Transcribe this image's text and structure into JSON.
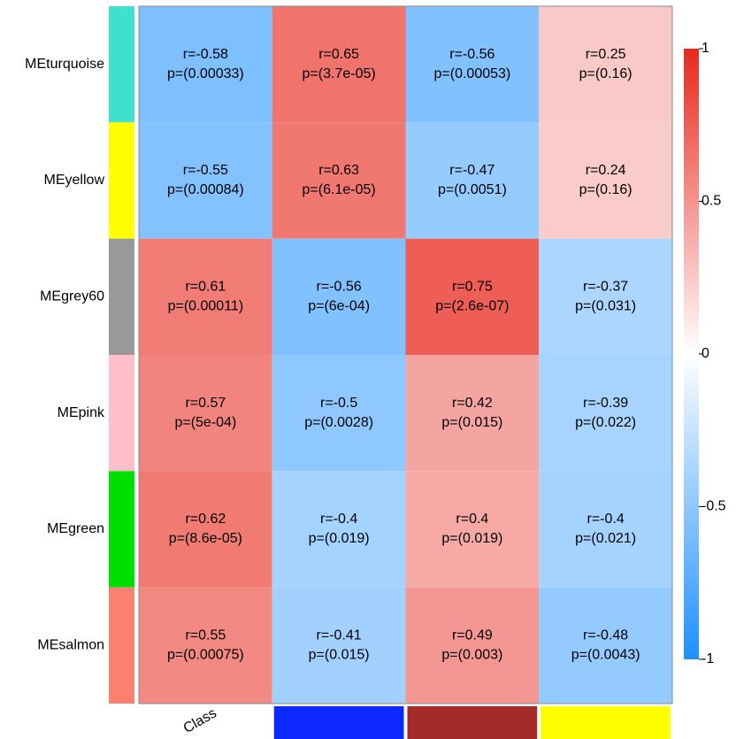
{
  "chart_data": {
    "type": "heatmap",
    "rows": [
      "MEturquoise",
      "MEyellow",
      "MEgrey60",
      "MEpink",
      "MEgreen",
      "MEsalmon"
    ],
    "row_colors": [
      "#40E0D0",
      "#FFFF00",
      "#999999",
      "#FFC0CB",
      "#00E000",
      "#FA8072"
    ],
    "categories": [
      "Class",
      null,
      null,
      null
    ],
    "column_colors": [
      null,
      "#0A28FF",
      "#A52A2A",
      "#FFFF00"
    ],
    "values": [
      [
        -0.58,
        0.65,
        -0.56,
        0.25
      ],
      [
        -0.55,
        0.63,
        -0.47,
        0.24
      ],
      [
        0.61,
        -0.56,
        0.75,
        -0.37
      ],
      [
        0.57,
        -0.5,
        0.42,
        -0.39
      ],
      [
        0.62,
        -0.4,
        0.4,
        -0.4
      ],
      [
        0.55,
        -0.41,
        0.49,
        -0.48
      ]
    ],
    "value_labels": [
      [
        "r=-0.58",
        "r=0.65",
        "r=-0.56",
        "r=0.25"
      ],
      [
        "r=-0.55",
        "r=0.63",
        "r=-0.47",
        "r=0.24"
      ],
      [
        "r=0.61",
        "r=-0.56",
        "r=0.75",
        "r=-0.37"
      ],
      [
        "r=0.57",
        "r=-0.5",
        "r=0.42",
        "r=-0.39"
      ],
      [
        "r=0.62",
        "r=-0.4",
        "r=0.4",
        "r=-0.4"
      ],
      [
        "r=0.55",
        "r=-0.41",
        "r=0.49",
        "r=-0.48"
      ]
    ],
    "p_labels": [
      [
        "p=(0.00033)",
        "p=(3.7e-05)",
        "p=(0.00053)",
        "p=(0.16)"
      ],
      [
        "p=(0.00084)",
        "p=(6.1e-05)",
        "p=(0.0051)",
        "p=(0.16)"
      ],
      [
        "p=(0.00011)",
        "p=(6e-04)",
        "p=(2.6e-07)",
        "p=(0.031)"
      ],
      [
        "p=(5e-04)",
        "p=(0.0028)",
        "p=(0.015)",
        "p=(0.022)"
      ],
      [
        "p=(8.6e-05)",
        "p=(0.019)",
        "p=(0.019)",
        "p=(0.021)"
      ],
      [
        "p=(0.00075)",
        "p=(0.015)",
        "p=(0.003)",
        "p=(0.0043)"
      ]
    ],
    "colorscale": [
      "#1E90FF",
      "#FFFFFF",
      "#E8281E"
    ],
    "zlim": [
      -1,
      1
    ],
    "zticks": [
      -1,
      -0.5,
      0,
      0.5,
      1
    ]
  }
}
